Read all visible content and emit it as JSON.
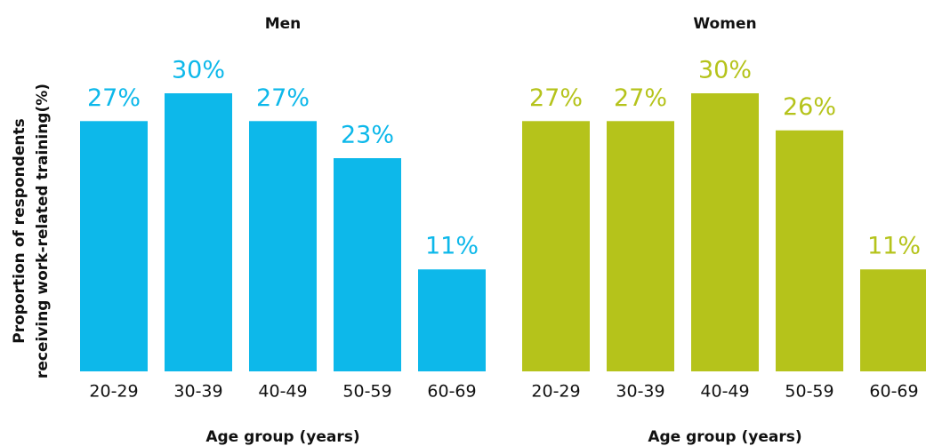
{
  "chart_data": [
    {
      "type": "bar",
      "title": "Men",
      "xlabel": "Age group (years)",
      "ylabel": [
        "Proportion of respondents",
        "receiving work-related training(%)"
      ],
      "categories": [
        "20-29",
        "30-39",
        "40-49",
        "50-59",
        "60-69"
      ],
      "values": [
        27,
        30,
        27,
        23,
        11
      ],
      "value_labels": [
        "27%",
        "30%",
        "27%",
        "23%",
        "11%"
      ],
      "color": "#0db8ea",
      "ylim": [
        0,
        30
      ]
    },
    {
      "type": "bar",
      "title": "Women",
      "xlabel": "Age group (years)",
      "categories": [
        "20-29",
        "30-39",
        "40-49",
        "50-59",
        "60-69"
      ],
      "values": [
        27,
        27,
        30,
        26,
        11
      ],
      "value_labels": [
        "27%",
        "27%",
        "30%",
        "26%",
        "11%"
      ],
      "color": "#b5c31b",
      "ylim": [
        0,
        30
      ]
    }
  ]
}
